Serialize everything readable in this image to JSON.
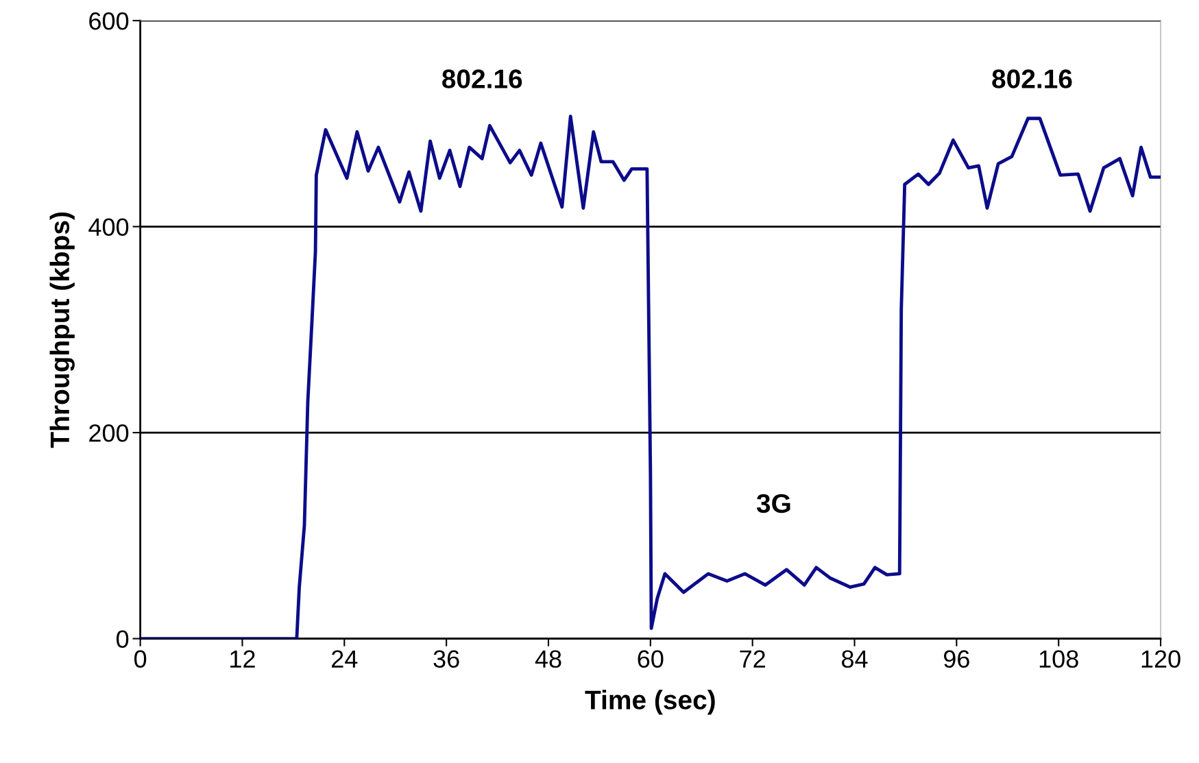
{
  "chart_data": {
    "type": "line",
    "xlabel": "Time (sec)",
    "ylabel": "Throughput (kbps)",
    "xlim": [
      0,
      120
    ],
    "ylim": [
      0,
      600
    ],
    "xticks": [
      0,
      12,
      24,
      36,
      48,
      60,
      72,
      84,
      96,
      108,
      120
    ],
    "yticks": [
      0,
      200,
      400,
      600
    ],
    "grid": "y",
    "marker": "none",
    "line_style": "solid",
    "annotations": [
      "802.16",
      "3G",
      "802.16"
    ],
    "series": [
      {
        "color": "#0c0c8a",
        "x": [
          0,
          18.4,
          18.7,
          19.3,
          19.7,
          20.2,
          20.6,
          20.7,
          21.8,
          24.3,
          25.5,
          26.8,
          28.0,
          30.5,
          31.6,
          33.0,
          34.1,
          35.2,
          36.4,
          37.6,
          38.7,
          40.2,
          41.1,
          43.5,
          44.6,
          46.0,
          47.1,
          49.6,
          50.6,
          52.1,
          53.3,
          54.2,
          55.6,
          56.9,
          57.8,
          59.4,
          59.6,
          59.8,
          60.0,
          60.1,
          60.8,
          61.7,
          63.9,
          66.8,
          69.0,
          71.1,
          73.5,
          76.0,
          78.1,
          79.5,
          81.1,
          83.5,
          85.1,
          86.4,
          87.8,
          89.3,
          89.4,
          89.5,
          89.9,
          91.5,
          92.7,
          94.0,
          95.6,
          97.4,
          98.6,
          99.6,
          100.9,
          102.5,
          104.4,
          105.8,
          108.2,
          110.3,
          111.7,
          113.3,
          115.2,
          116.7,
          117.7,
          118.8,
          120
        ],
        "values": [
          0,
          0,
          50,
          110,
          230,
          310,
          376,
          450,
          494,
          447,
          492,
          454,
          477,
          424,
          453,
          415,
          483,
          447,
          474,
          439,
          477,
          466,
          498,
          462,
          474,
          450,
          481,
          419,
          507,
          418,
          492,
          463,
          463,
          445,
          456,
          456,
          456,
          310,
          160,
          10,
          39,
          63,
          45,
          63,
          56,
          63,
          52,
          67,
          52,
          69,
          59,
          50,
          53,
          69,
          62,
          63,
          190,
          320,
          441,
          451,
          441,
          452,
          484,
          457,
          459,
          418,
          461,
          468,
          505,
          505,
          450,
          451,
          415,
          457,
          466,
          430,
          477,
          448,
          448
        ]
      }
    ]
  }
}
